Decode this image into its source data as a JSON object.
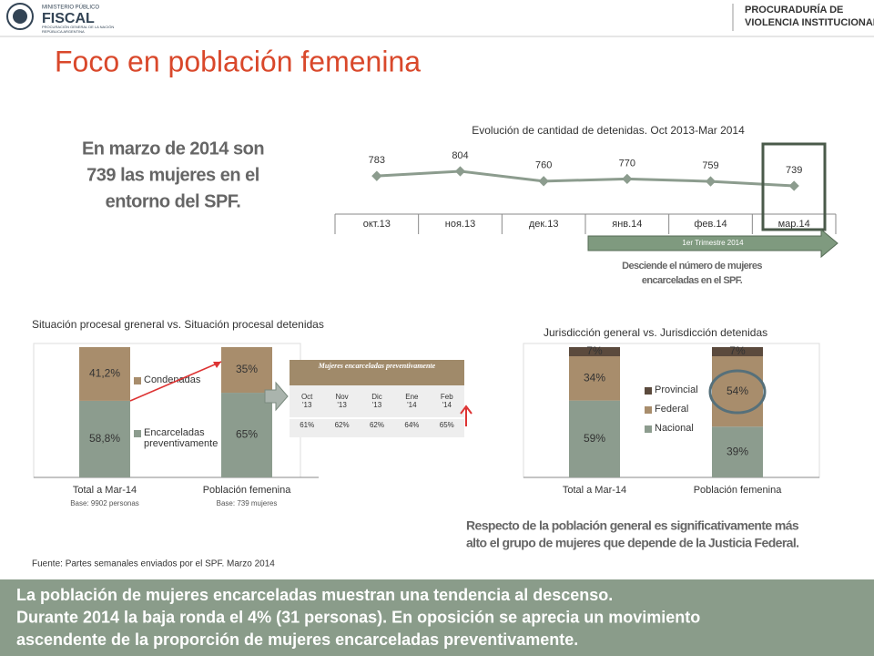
{
  "header": {
    "org_small": "MINISTERIO PÚBLICO",
    "org": "FISCAL",
    "org_sub": [
      "PROCURACIÓN GENERAL DE LA NACIÓN",
      "REPÚBLICA ARGENTINA"
    ],
    "unit": [
      "PROCURADURÍA DE",
      "VIOLENCIA INSTITUCIONAL"
    ]
  },
  "title": "Foco en población femenina",
  "highlight": [
    "En marzo de 2014 son",
    "739 las mujeres  en el",
    "entorno del SPF."
  ],
  "chart_data": [
    {
      "type": "line",
      "title": "Evolución de cantidad de detenidas. Oct 2013-Mar 2014",
      "categories": [
        "окт.13",
        "ноя.13",
        "дек.13",
        "янв.14",
        "фев.14",
        "мар.14"
      ],
      "values": [
        783,
        804,
        760,
        770,
        759,
        739
      ],
      "color": "#8c9c8e",
      "band_label": "1er Trimestre 2014",
      "annotation": [
        "Desciende el número de mujeres",
        "encarceladas en el SPF."
      ]
    },
    {
      "type": "stacked_bar",
      "title": "Situación procesal greneral vs. Situación procesal detenidas",
      "categories": [
        "Total a Mar-14",
        "Población femenina"
      ],
      "bases": [
        "Base: 9902 personas",
        "Base: 739 mujeres"
      ],
      "series": [
        {
          "name": "Encarceladas preventivamente",
          "color": "#8c9c8e",
          "values": [
            58.8,
            65
          ],
          "value_labels": [
            "58,8%",
            "65%"
          ]
        },
        {
          "name": "Condenadas",
          "color": "#a88d6c",
          "values": [
            41.2,
            35
          ],
          "value_labels": [
            "41,2%",
            "35%"
          ]
        }
      ]
    },
    {
      "type": "stacked_bar",
      "title": "Jurisdicción general vs. Jurisdicción detenidas",
      "categories": [
        "Total a Mar-14",
        "Población femenina"
      ],
      "series": [
        {
          "name": "Nacional",
          "color": "#8c9c8e",
          "values": [
            59,
            39
          ],
          "value_labels": [
            "59%",
            "39%"
          ]
        },
        {
          "name": "Federal",
          "color": "#a88d6c",
          "values": [
            34,
            54
          ],
          "value_labels": [
            "34%",
            "54%"
          ]
        },
        {
          "name": "Provincial",
          "color": "#5b4a3d",
          "values": [
            7,
            7
          ],
          "value_labels": [
            "7%",
            "7%"
          ]
        }
      ],
      "annotation": [
        "Respecto de la población general es significativamente más",
        "alto el grupo de mujeres que depende de la Justicia Federal."
      ]
    }
  ],
  "table": {
    "title": "Mujeres encarceladas preventivamente",
    "columns": [
      "Oct '13",
      "Nov '13",
      "Dic '13",
      "Ene '14",
      "Feb '14"
    ],
    "rows": [
      [
        "61%",
        "62%",
        "62%",
        "64%",
        "65%"
      ]
    ]
  },
  "source": "Fuente: Partes semanales enviados por el SPF. Marzo 2014",
  "footer": [
    "La población de mujeres encarceladas muestran una tendencia al descenso.",
    "Durante 2014 la baja ronda el 4% (31 personas). En oposición se aprecia un movimiento",
    "ascendente de la proporción de mujeres encarceladas preventivamente."
  ]
}
